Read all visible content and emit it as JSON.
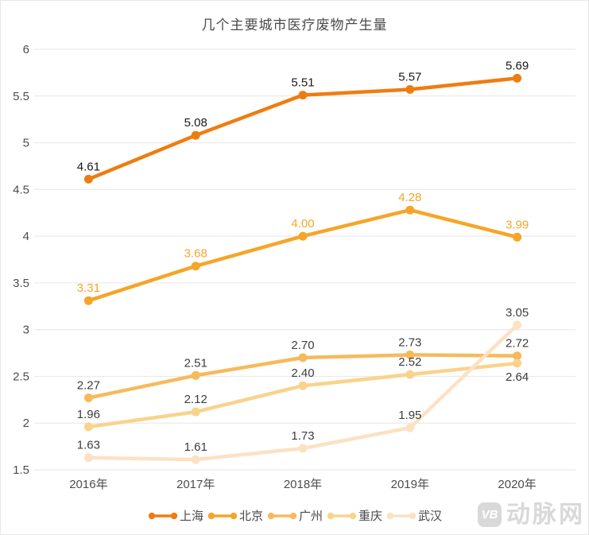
{
  "watermark": {
    "badge": "VB",
    "name": "动脉网"
  },
  "chart_data": {
    "type": "line",
    "title": "几个主要城市医疗废物产生量",
    "categories": [
      "2016年",
      "2017年",
      "2018年",
      "2019年",
      "2020年"
    ],
    "series": [
      {
        "name": "上海",
        "slug": "shanghai",
        "values": [
          4.61,
          5.08,
          5.51,
          5.57,
          5.69
        ],
        "color": "#ee7d11",
        "label_color": "#1a1a1a"
      },
      {
        "name": "北京",
        "slug": "beijing",
        "values": [
          3.31,
          3.68,
          4.0,
          4.28,
          3.99
        ],
        "color": "#f6a529",
        "label_color": "#f6a529"
      },
      {
        "name": "广州",
        "slug": "guangzhou",
        "values": [
          2.27,
          2.51,
          2.7,
          2.73,
          2.72
        ],
        "color": "#f6ba5c",
        "label_color": "#3d3d3d"
      },
      {
        "name": "重庆",
        "slug": "chongqing",
        "values": [
          1.96,
          2.12,
          2.4,
          2.52,
          2.64
        ],
        "color": "#f9d38c",
        "label_color": "#3d3d3d",
        "label_overrides": {
          "4": "bottom"
        }
      },
      {
        "name": "武汉",
        "slug": "wuhan",
        "values": [
          1.63,
          1.61,
          1.73,
          1.95,
          3.05
        ],
        "color": "#fbe2c3",
        "label_color": "#3d3d3d"
      }
    ],
    "ylim": [
      1.5,
      6
    ],
    "y_step": 0.5,
    "grid": true,
    "grid_color": "#e6e6e6",
    "axis_label_color": "#4d4d4d",
    "legend_position": "bottom"
  }
}
